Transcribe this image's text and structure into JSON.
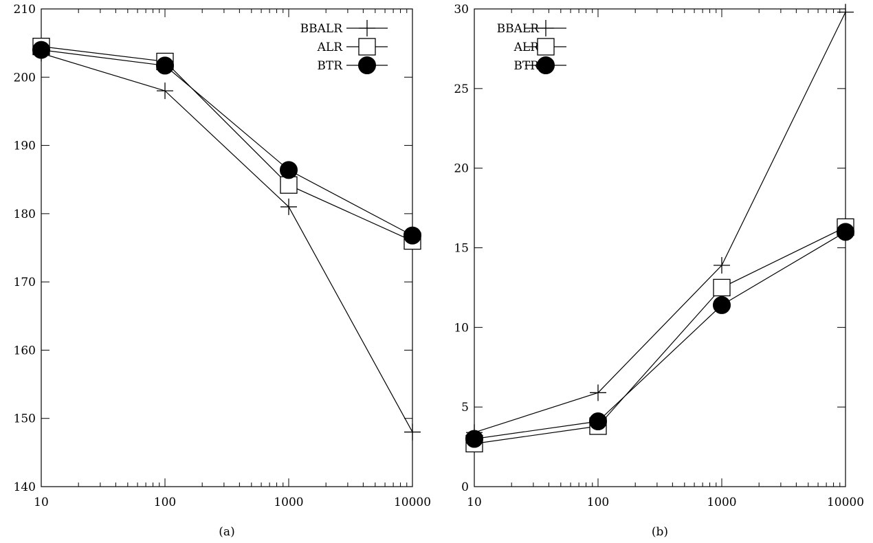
{
  "chart_data": [
    {
      "type": "line",
      "caption": "(a)",
      "xscale": "log",
      "xlim": [
        10,
        10000
      ],
      "ylim": [
        140,
        210
      ],
      "x": [
        10,
        100,
        1000,
        10000
      ],
      "x_tick_labels": [
        "10",
        "100",
        "1000",
        "10000"
      ],
      "y_ticks": [
        140,
        150,
        160,
        170,
        180,
        190,
        200,
        210
      ],
      "y_tick_labels": [
        "140",
        "150",
        "160",
        "170",
        "180",
        "190",
        "200",
        "210"
      ],
      "legend_position": "top-right",
      "series": [
        {
          "name": "BBALR",
          "marker": "plus",
          "values": [
            203.5,
            198.0,
            181.0,
            148.0
          ]
        },
        {
          "name": "ALR",
          "marker": "square",
          "values": [
            204.5,
            202.3,
            184.2,
            176.0
          ]
        },
        {
          "name": "BTR",
          "marker": "circle",
          "values": [
            204.0,
            201.7,
            186.4,
            176.8
          ]
        }
      ],
      "grid": false
    },
    {
      "type": "line",
      "caption": "(b)",
      "xscale": "log",
      "xlim": [
        10,
        10000
      ],
      "ylim": [
        0,
        30
      ],
      "x": [
        10,
        100,
        1000,
        10000
      ],
      "x_tick_labels": [
        "10",
        "100",
        "1000",
        "10000"
      ],
      "y_ticks": [
        0,
        5,
        10,
        15,
        20,
        25,
        30
      ],
      "y_tick_labels": [
        "0",
        "5",
        "10",
        "15",
        "20",
        "25",
        "30"
      ],
      "legend_position": "top-left",
      "series": [
        {
          "name": "BBALR",
          "marker": "plus",
          "values": [
            3.4,
            5.9,
            13.9,
            29.8
          ]
        },
        {
          "name": "ALR",
          "marker": "square",
          "values": [
            2.7,
            3.8,
            12.5,
            16.3
          ]
        },
        {
          "name": "BTR",
          "marker": "circle",
          "values": [
            3.0,
            4.1,
            11.4,
            16.0
          ]
        }
      ],
      "grid": false
    }
  ]
}
